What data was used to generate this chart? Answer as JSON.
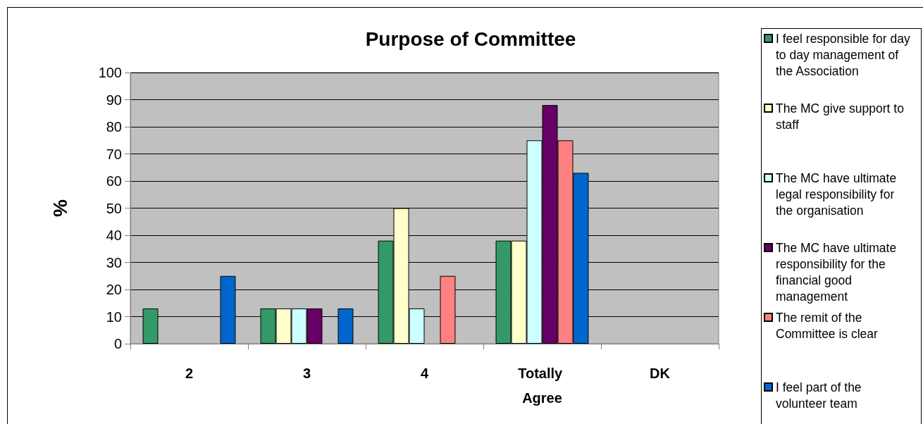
{
  "chart_data": {
    "type": "bar",
    "title": "Purpose of Committee",
    "ylabel": "%",
    "categories": [
      "2",
      "3",
      "4",
      "Totally Agree",
      "DK"
    ],
    "series": [
      {
        "name": "I feel responsible for day to day management of the Association",
        "color": "#339966",
        "values": [
          13,
          13,
          38,
          38,
          null
        ]
      },
      {
        "name": "The MC give support to staff",
        "color": "#ffffcc",
        "values": [
          null,
          13,
          50,
          38,
          null
        ]
      },
      {
        "name": "The MC have ultimate legal responsibility for the organisation",
        "color": "#ccffff",
        "values": [
          null,
          13,
          13,
          75,
          null
        ]
      },
      {
        "name": "The MC have ultimate responsibility for the financial good management",
        "color": "#660066",
        "values": [
          null,
          13,
          null,
          88,
          null
        ]
      },
      {
        "name": "The remit of the Committee is clear",
        "color": "#ff8080",
        "values": [
          null,
          null,
          25,
          75,
          null
        ]
      },
      {
        "name": "I feel part of the volunteer team",
        "color": "#0066cc",
        "values": [
          25,
          13,
          null,
          63,
          null
        ]
      }
    ],
    "ylim": [
      0,
      100
    ],
    "yticks": [
      0,
      10,
      20,
      30,
      40,
      50,
      60,
      70,
      80,
      90,
      100
    ],
    "grid": "y",
    "legend": "right"
  }
}
